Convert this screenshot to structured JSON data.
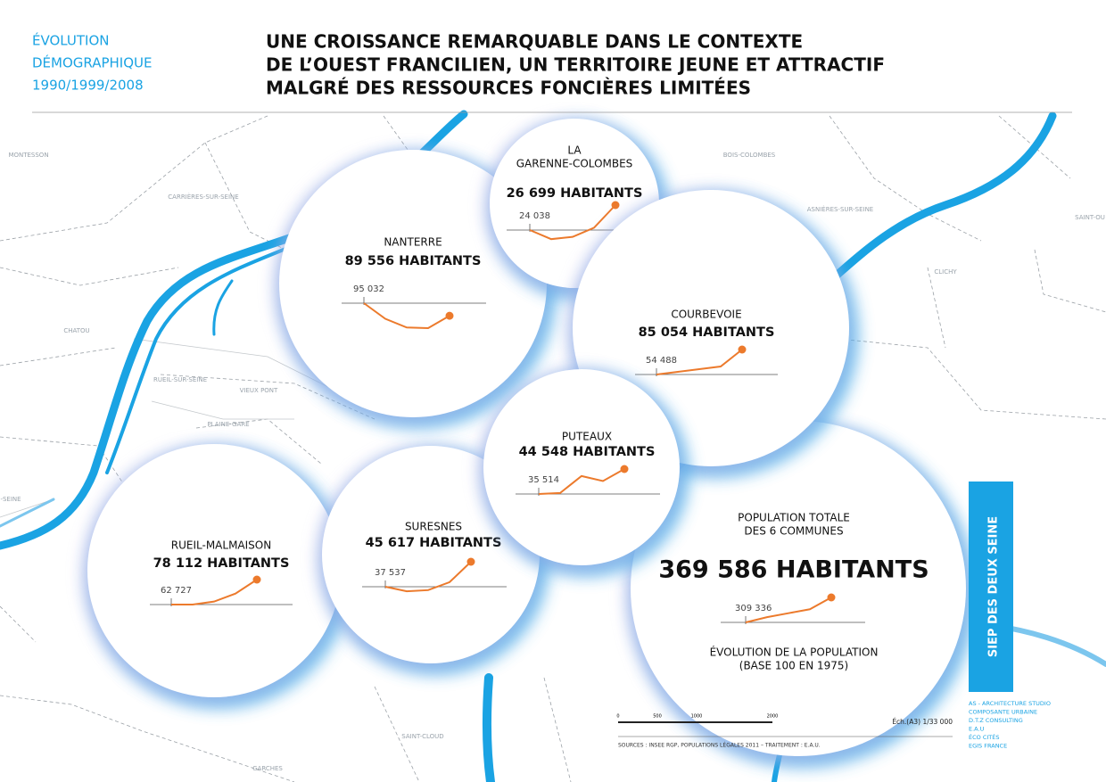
{
  "header": {
    "kicker": [
      "ÉVOLUTION",
      "DÉMOGRAPHIQUE",
      "1990/1999/2008"
    ],
    "title": [
      "UNE CROISSANCE REMARQUABLE DANS LE CONTEXTE",
      "DE L’OUEST FRANCILIEN, UN TERRITOIRE JEUNE ET ATTRACTIF",
      "MALGRÉ DES RESSOURCES FONCIÈRES LIMITÉES"
    ]
  },
  "cities": [
    {
      "name": [
        "POPULATION TOTALE",
        "DES 6 COMMUNES"
      ],
      "population": "369 586 HABITANTS",
      "start_label": "309 336",
      "sparkline": [
        100,
        104,
        107,
        110,
        119
      ],
      "caption": [
        "ÉVOLUTION DE LA POPULATION",
        "(BASE 100 EN 1975)"
      ]
    },
    {
      "name": [
        "RUEIL-MALMAISON"
      ],
      "population": "78 112 HABITANTS",
      "start_label": "62 727",
      "sparkline": [
        100,
        100,
        103,
        111,
        125
      ]
    },
    {
      "name": [
        "SURESNES"
      ],
      "population": "45 617 HABITANTS",
      "start_label": "37 537",
      "sparkline": [
        100,
        96,
        97,
        104,
        122
      ]
    },
    {
      "name": [
        "NANTERRE"
      ],
      "population": "89 556 HABITANTS",
      "start_label": "95 032",
      "sparkline": [
        100,
        92.8,
        88.8,
        88.5,
        94.2
      ]
    },
    {
      "name": [
        "LA",
        "GARENNE-COLOMBES"
      ],
      "population": "26 699 HABITANTS",
      "start_label": "24 038",
      "sparkline": [
        100,
        96,
        97,
        101,
        111
      ]
    },
    {
      "name": [
        "COURBEVOIE"
      ],
      "population": "85 054 HABITANTS",
      "start_label": "54 488",
      "sparkline": [
        100,
        106,
        112,
        118,
        156
      ]
    },
    {
      "name": [
        "PUTEAUX"
      ],
      "population": "44 548 HABITANTS",
      "start_label": "35 514",
      "sparkline": [
        100,
        101,
        118,
        113,
        125
      ]
    }
  ],
  "places": [
    "MONTESSON",
    "CARRIÈRES-SUR-SEINE",
    "CHATOU",
    "RUEIL-SUR-SEINE",
    "VIEUX PONT",
    "PLAINE-GARE",
    "BOIS-COLOMBES",
    "ASNIÈRES-SUR-SEINE",
    "CLICHY",
    "SAINT-OU",
    "SAINT-CLOUD",
    "GARCHES",
    "-SEINE"
  ],
  "scale": {
    "ticks": [
      "0",
      "500",
      "1000",
      "2000"
    ],
    "ratio": "Éch.(A3) 1/33 000",
    "sources": "SOURCES : INSEE RGP, POPULATIONS LÉGALES 2011 – TRAITEMENT : E.A.U."
  },
  "sidebar": "SIEP DES DEUX SEINE",
  "credits": [
    "AS - ARCHITECTURE STUDIO",
    "COMPOSANTE URBAINE",
    "D.T.Z CONSULTING",
    "E.A.U",
    "ÉCO CITÉS",
    "EGIS FRANCE"
  ]
}
